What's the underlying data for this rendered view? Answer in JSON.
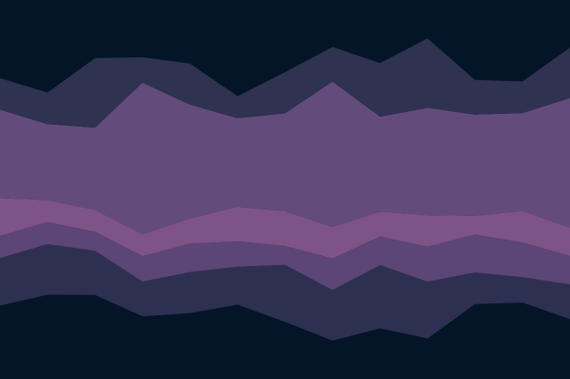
{
  "chart_data": {
    "type": "area",
    "stacked": true,
    "baseline": "wiggle",
    "x": [
      0,
      1,
      2,
      3,
      4,
      5,
      6,
      7,
      8,
      9,
      10,
      11,
      12
    ],
    "series": [
      {
        "color": "#2e3052",
        "values": [
          7.5,
          8.0,
          7.0,
          5.5,
          6.5,
          6.0,
          9.0,
          8.0,
          10.0,
          9.0,
          5.0,
          4.0,
          5.5
        ]
      },
      {
        "color": "#5c4577",
        "values": [
          3.5,
          3.5,
          3.0,
          4.0,
          4.5,
          4.0,
          3.0,
          5.0,
          4.5,
          5.5,
          6.0,
          5.5,
          4.5
        ]
      },
      {
        "color": "#7d5388",
        "values": [
          6.0,
          3.5,
          3.5,
          3.5,
          4.0,
          5.5,
          5.5,
          5.0,
          4.0,
          5.0,
          3.0,
          5.0,
          4.5
        ]
      },
      {
        "color": "#634c7c",
        "values": [
          14.0,
          12.0,
          13.0,
          24.0,
          18.0,
          14.0,
          15.5,
          23.0,
          15.0,
          17.0,
          16.0,
          15.5,
          20.5
        ]
      },
      {
        "color": "#2f3251",
        "values": [
          5.0,
          5.0,
          11.0,
          4.0,
          6.5,
          3.5,
          6.5,
          5.5,
          8.5,
          11.0,
          5.5,
          5.0,
          8.0
        ]
      }
    ],
    "ylim": [
      0,
      60
    ]
  }
}
